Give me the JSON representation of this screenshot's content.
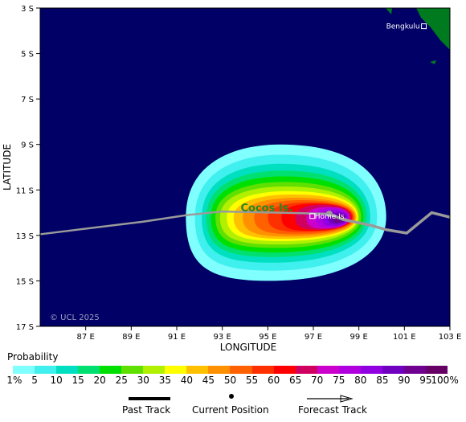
{
  "map": {
    "lon_min": 85,
    "lon_max": 103,
    "lat_min": -17,
    "lat_max": -3,
    "lat_ticks": [
      {
        "v": -3,
        "label": "3 S"
      },
      {
        "v": -5,
        "label": "5 S"
      },
      {
        "v": -7,
        "label": "7 S"
      },
      {
        "v": -9,
        "label": "9 S"
      },
      {
        "v": -11,
        "label": "11 S"
      },
      {
        "v": -13,
        "label": "13 S"
      },
      {
        "v": -15,
        "label": "15 S"
      },
      {
        "v": -17,
        "label": "17 S"
      }
    ],
    "lon_ticks": [
      {
        "v": 87,
        "label": "87 E"
      },
      {
        "v": 89,
        "label": "89 E"
      },
      {
        "v": 91,
        "label": "91 E"
      },
      {
        "v": 93,
        "label": "93 E"
      },
      {
        "v": 95,
        "label": "95 E"
      },
      {
        "v": 97,
        "label": "97 E"
      },
      {
        "v": 99,
        "label": "99 E"
      },
      {
        "v": 101,
        "label": "101 E"
      },
      {
        "v": 103,
        "label": "103 E"
      }
    ],
    "xlabel": "LONGITUDE",
    "ylabel": "LATITUDE",
    "copyright": "© UCL 2025",
    "ocean_color": "#000066",
    "land_color": "#007a1f",
    "places": [
      {
        "name": "Bengkulu",
        "lon": 101.75,
        "lat": -3.8,
        "label_color": "#ffffff"
      },
      {
        "name": "Home Is.",
        "lon": 96.85,
        "lat": -12.15,
        "label_color": "#ffffff"
      }
    ],
    "region_label": {
      "text": "Cocos Is.",
      "lon": 94.95,
      "lat": -11.95,
      "color": "#228b22"
    },
    "storm": {
      "past_track": [
        [
          85,
          -12.95
        ],
        [
          89.5,
          -12.4
        ],
        [
          91.5,
          -12.1
        ],
        [
          93,
          -11.95
        ],
        [
          95.5,
          -12.0
        ],
        [
          97.7,
          -12.05
        ]
      ],
      "current_position": [
        97.7,
        -12.05
      ],
      "forecast_track": [
        [
          97.7,
          -12.05
        ],
        [
          98.3,
          -12.3
        ],
        [
          99.5,
          -12.55
        ],
        [
          100.2,
          -12.75
        ],
        [
          101.1,
          -12.9
        ],
        [
          102.2,
          -12.0
        ],
        [
          103,
          -12.2
        ]
      ],
      "probability_contours": [
        {
          "p": 1,
          "lon_w": 91.4,
          "lon_e": 100.2,
          "lat_n": -9.0,
          "lat_s": -15.0
        },
        {
          "p": 5,
          "lon_w": 91.8,
          "lon_e": 99.8,
          "lat_n": -9.45,
          "lat_s": -14.55
        },
        {
          "p": 10,
          "lon_w": 92.1,
          "lon_e": 99.5,
          "lat_n": -9.85,
          "lat_s": -14.2
        },
        {
          "p": 15,
          "lon_w": 92.3,
          "lon_e": 99.35,
          "lat_n": -10.15,
          "lat_s": -13.95
        },
        {
          "p": 20,
          "lon_w": 92.5,
          "lon_e": 99.2,
          "lat_n": -10.4,
          "lat_s": -13.75
        },
        {
          "p": 25,
          "lon_w": 92.7,
          "lon_e": 99.1,
          "lat_n": -10.65,
          "lat_s": -13.55
        },
        {
          "p": 30,
          "lon_w": 92.9,
          "lon_e": 99.0,
          "lat_n": -10.85,
          "lat_s": -13.4
        },
        {
          "p": 35,
          "lon_w": 93.2,
          "lon_e": 98.95,
          "lat_n": -11.05,
          "lat_s": -13.25
        },
        {
          "p": 40,
          "lon_w": 93.5,
          "lon_e": 98.9,
          "lat_n": -11.2,
          "lat_s": -13.15
        },
        {
          "p": 45,
          "lon_w": 93.9,
          "lon_e": 98.85,
          "lat_n": -11.35,
          "lat_s": -13.05
        },
        {
          "p": 50,
          "lon_w": 94.4,
          "lon_e": 98.8,
          "lat_n": -11.45,
          "lat_s": -12.95
        },
        {
          "p": 55,
          "lon_w": 95.0,
          "lon_e": 98.75,
          "lat_n": -11.55,
          "lat_s": -12.85
        },
        {
          "p": 60,
          "lon_w": 95.6,
          "lon_e": 98.7,
          "lat_n": -11.6,
          "lat_s": -12.8
        },
        {
          "p": 65,
          "lon_w": 96.2,
          "lon_e": 98.65,
          "lat_n": -11.65,
          "lat_s": -12.75
        },
        {
          "p": 70,
          "lon_w": 96.7,
          "lon_e": 98.6,
          "lat_n": -11.75,
          "lat_s": -12.7
        },
        {
          "p": 75,
          "lon_w": 97.1,
          "lon_e": 98.55,
          "lat_n": -11.8,
          "lat_s": -12.65
        },
        {
          "p": 80,
          "lon_w": 97.4,
          "lon_e": 98.5,
          "lat_n": -11.9,
          "lat_s": -12.6
        },
        {
          "p": 85,
          "lon_w": 97.65,
          "lon_e": 98.45,
          "lat_n": -12.0,
          "lat_s": -12.5
        },
        {
          "p": 90,
          "lon_w": 97.85,
          "lon_e": 98.4,
          "lat_n": -12.1,
          "lat_s": -12.45
        }
      ]
    }
  },
  "legend": {
    "title": "Probability",
    "colors": [
      "#80ffff",
      "#40f0ee",
      "#00e0c0",
      "#00e070",
      "#00e000",
      "#60e000",
      "#b0f000",
      "#ffff00",
      "#ffc000",
      "#ff9000",
      "#ff6000",
      "#ff3000",
      "#ff0000",
      "#d00060",
      "#cc00cc",
      "#b000e0",
      "#9000e0",
      "#7000c0",
      "#700090",
      "#660066"
    ],
    "labels": [
      "1%",
      "5",
      "10",
      "15",
      "20",
      "25",
      "30",
      "35",
      "40",
      "45",
      "50",
      "55",
      "60",
      "65",
      "70",
      "75",
      "80",
      "85",
      "90",
      "95",
      "100%"
    ],
    "past_track": "Past Track",
    "current_position": "Current Position",
    "forecast_track": "Forecast Track"
  }
}
